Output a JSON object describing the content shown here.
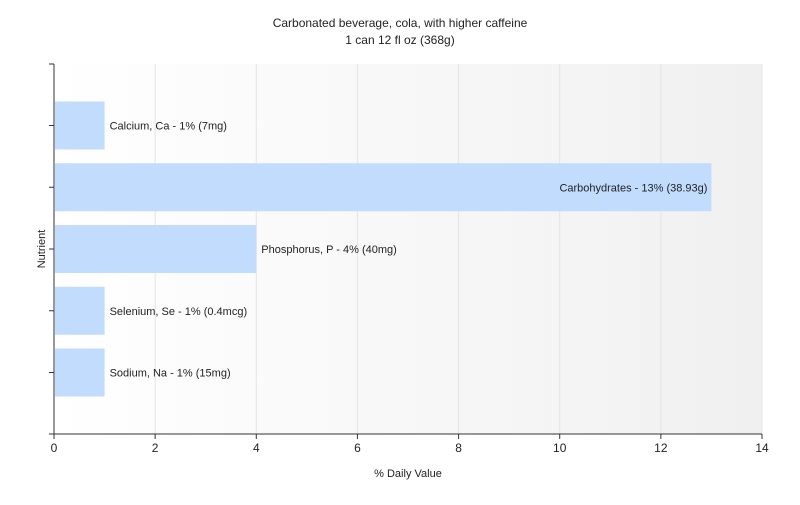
{
  "chart_data": {
    "type": "bar",
    "orientation": "horizontal",
    "title": "Carbonated beverage, cola, with higher caffeine",
    "subtitle": "1 can 12 fl oz (368g)",
    "xlabel": "% Daily Value",
    "ylabel": "Nutrient",
    "xlim": [
      0,
      14
    ],
    "x_ticks": [
      "0",
      "2",
      "4",
      "6",
      "8",
      "10",
      "12",
      "14"
    ],
    "grid": true,
    "legend": "none",
    "bar_color": "#c2dcfd",
    "categories": [
      "Calcium, Ca",
      "Carbohydrates",
      "Phosphorus, P",
      "Selenium, Se",
      "Sodium, Na"
    ],
    "values": [
      1,
      13,
      4,
      1,
      1
    ],
    "labels": [
      "Calcium, Ca - 1% (7mg)",
      "Carbohydrates - 13% (38.93g)",
      "Phosphorus, P - 4% (40mg)",
      "Selenium, Se - 1% (0.4mcg)",
      "Sodium, Na - 1% (15mg)"
    ]
  }
}
